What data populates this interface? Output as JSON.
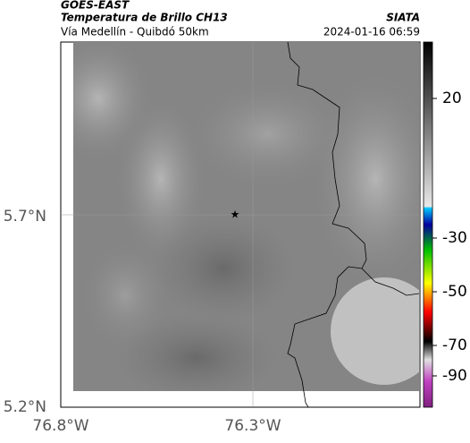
{
  "header": {
    "source": "GOES-EAST",
    "title": "Temperatura de Brillo CH13",
    "subtitle": "Vía Medellín - Quibdó 50km",
    "brand": "SIATA",
    "timestamp": "2024-01-16 06:59"
  },
  "map": {
    "lat_labels": [
      "5.7°N",
      "5.2°N"
    ],
    "lon_labels": [
      "76.8°W",
      "76.3°W"
    ]
  },
  "colorbar": {
    "ticks": [
      20,
      -30,
      -50,
      -70,
      -90
    ]
  }
}
